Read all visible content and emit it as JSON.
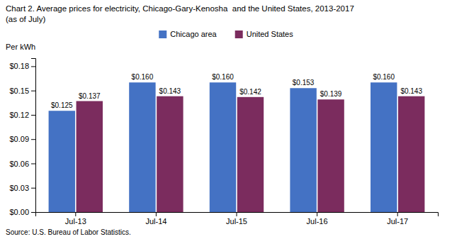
{
  "chart_data": {
    "type": "bar",
    "title": "Chart 2. Average prices for electricity, Chicago-Gary-Kenosha  and the United States, 2013-2017",
    "subtitle": "(as of July)",
    "ylabel": "Per kWh",
    "annotations": [
      "Source: U.S. Bureau of Labor Statistics."
    ],
    "categories": [
      "Jul-13",
      "Jul-14",
      "Jul-15",
      "Jul-16",
      "Jul-17"
    ],
    "series": [
      {
        "name": "Chicago area",
        "color": "#4472C4",
        "values": [
          0.125,
          0.16,
          0.16,
          0.153,
          0.16
        ],
        "value_labels": [
          "$0.125",
          "$0.160",
          "$0.160",
          "$0.153",
          "$0.160"
        ]
      },
      {
        "name": "United States",
        "color": "#7B2C5E",
        "values": [
          0.137,
          0.143,
          0.142,
          0.139,
          0.143
        ],
        "value_labels": [
          "$0.137",
          "$0.143",
          "$0.142",
          "$0.139",
          "$0.143"
        ]
      }
    ],
    "ylim": [
      0,
      0.19
    ],
    "yticks": [
      {
        "value": 0.0,
        "label": "$0.00"
      },
      {
        "value": 0.03,
        "label": "$0.03"
      },
      {
        "value": 0.06,
        "label": "$0.06"
      },
      {
        "value": 0.09,
        "label": "$0.09"
      },
      {
        "value": 0.12,
        "label": "$0.12"
      },
      {
        "value": 0.15,
        "label": "$0.15"
      },
      {
        "value": 0.18,
        "label": "$0.18"
      }
    ],
    "grid": false,
    "legend": "top",
    "data_labels": true
  }
}
